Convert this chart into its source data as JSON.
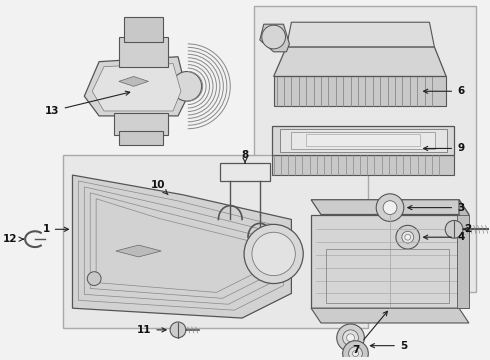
{
  "bg_color": "#f2f2f2",
  "fig_bg": "#f2f2f2",
  "panel_bg": "#e8e8e8",
  "panel_edge": "#aaaaaa",
  "part_fill": "#d8d8d8",
  "part_edge": "#555555",
  "line_color": "#555555",
  "label_color": "#111111",
  "label_fontsize": 7.5,
  "arrow_color": "#222222"
}
